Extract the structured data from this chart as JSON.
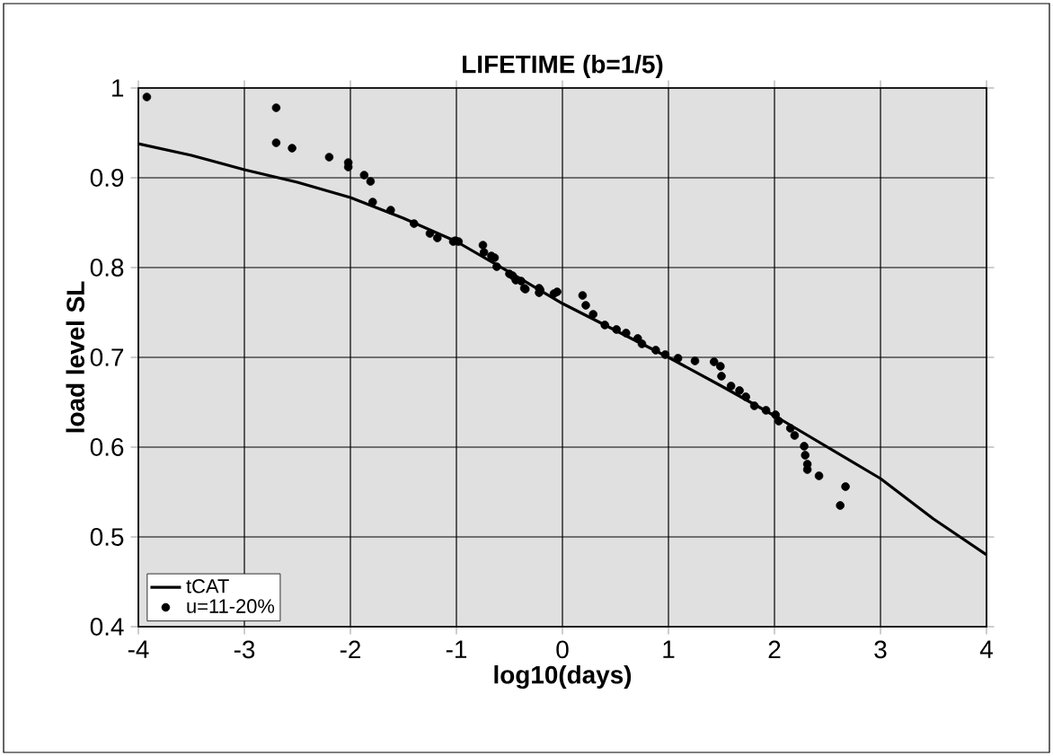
{
  "chart_data": {
    "type": "scatter",
    "title": "LIFETIME (b=1/5)",
    "xlabel": "log10(days)",
    "ylabel": "load level SL",
    "xlim": [
      -4,
      4
    ],
    "ylim": [
      0.4,
      1
    ],
    "xticks": [
      -4,
      -3,
      -2,
      -1,
      0,
      1,
      2,
      3,
      4
    ],
    "yticks": [
      0.4,
      0.5,
      0.6,
      0.7,
      0.8,
      0.9,
      1
    ],
    "grid": true,
    "legend": "bottom left",
    "series": [
      {
        "name": "tCAT",
        "type": "line",
        "color": "#000000",
        "marker": "none",
        "line_style": "solid",
        "x": [
          -4,
          -3.5,
          -3,
          -2.5,
          -2,
          -1.5,
          -1,
          -0.5,
          0,
          0.5,
          1,
          1.5,
          2,
          2.5,
          3,
          3.5,
          4
        ],
        "values": [
          0.938,
          0.925,
          0.909,
          0.895,
          0.878,
          0.855,
          0.829,
          0.795,
          0.76,
          0.73,
          0.7,
          0.668,
          0.635,
          0.6,
          0.565,
          0.52,
          0.48
        ]
      },
      {
        "name": "u=11-20%",
        "color": "#000000",
        "marker": "circle",
        "x": [
          -3.92,
          -2.7,
          -2.7,
          -2.55,
          -2.2,
          -2.02,
          -2.02,
          -1.87,
          -1.81,
          -1.79,
          -1.62,
          -1.4,
          -1.25,
          -1.18,
          -1.03,
          -0.98,
          -0.75,
          -0.74,
          -0.64,
          -0.62,
          -0.5,
          -0.44,
          -0.36,
          -0.22,
          -0.22,
          -0.08,
          -1.01,
          -0.67,
          -0.47,
          -0.39,
          -0.35,
          -0.21,
          -0.05,
          0.19,
          0.22,
          0.29,
          0.4,
          0.51,
          0.6,
          0.71,
          0.75,
          0.88,
          0.97,
          1.09,
          1.25,
          1.43,
          1.49,
          1.5,
          1.59,
          1.67,
          1.73,
          1.81,
          1.92,
          2.01,
          2.04,
          2.15,
          2.19,
          2.28,
          2.29,
          2.31,
          2.31,
          2.42,
          2.67,
          2.62
        ],
        "values": [
          0.99,
          0.978,
          0.939,
          0.933,
          0.923,
          0.917,
          0.912,
          0.903,
          0.896,
          0.873,
          0.864,
          0.849,
          0.838,
          0.833,
          0.829,
          0.829,
          0.825,
          0.817,
          0.811,
          0.801,
          0.793,
          0.786,
          0.777,
          0.777,
          0.772,
          0.771,
          0.83,
          0.813,
          0.791,
          0.785,
          0.776,
          0.775,
          0.773,
          0.769,
          0.758,
          0.748,
          0.736,
          0.731,
          0.727,
          0.721,
          0.715,
          0.708,
          0.703,
          0.699,
          0.696,
          0.695,
          0.69,
          0.679,
          0.668,
          0.663,
          0.656,
          0.646,
          0.641,
          0.636,
          0.629,
          0.621,
          0.613,
          0.601,
          0.591,
          0.581,
          0.575,
          0.568,
          0.556,
          0.535
        ]
      }
    ]
  }
}
